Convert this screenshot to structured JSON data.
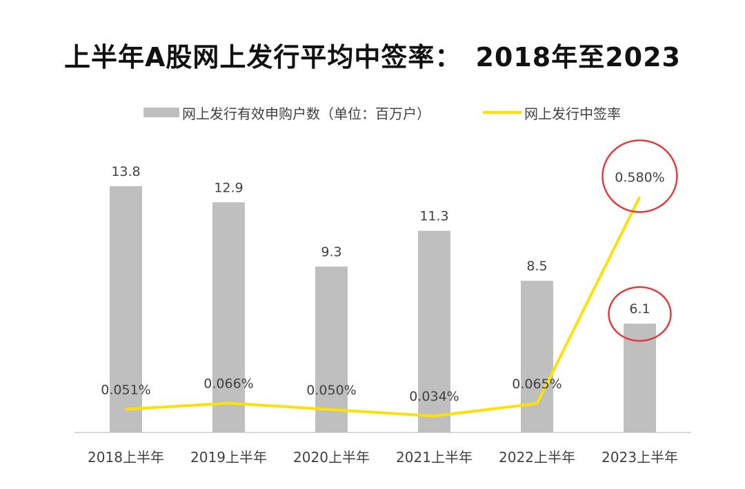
{
  "title": {
    "main": "上半年A股网上发行平均中签率：",
    "range": "2018年至2023"
  },
  "chart_data": {
    "type": "bar+line",
    "categories": [
      "2018上半年",
      "2019上半年",
      "2020上半年",
      "2021上半年",
      "2022上半年",
      "2023上半年"
    ],
    "series": [
      {
        "name": "网上发行有效申购户数（单位：百万户）",
        "type": "bar",
        "values": [
          13.8,
          12.9,
          9.3,
          11.3,
          8.5,
          6.1
        ],
        "labels": [
          "13.8",
          "12.9",
          "9.3",
          "11.3",
          "8.5",
          "6.1"
        ],
        "color": "#bfbfbf"
      },
      {
        "name": "网上发行中签率",
        "type": "line",
        "values": [
          0.051,
          0.066,
          0.05,
          0.034,
          0.065,
          0.58
        ],
        "labels": [
          "0.051%",
          "0.066%",
          "0.050%",
          "0.034%",
          "0.065%",
          "0.580%"
        ],
        "unit": "%",
        "color": "#ffe100"
      }
    ],
    "annotations": [
      {
        "type": "circle",
        "target": "网上发行中签率",
        "index": 5,
        "color": "#e03c3c"
      },
      {
        "type": "circle",
        "target": "网上发行有效申购户数（单位：百万户）",
        "index": 5,
        "color": "#e03c3c"
      }
    ],
    "legend": "top",
    "grid": false
  }
}
